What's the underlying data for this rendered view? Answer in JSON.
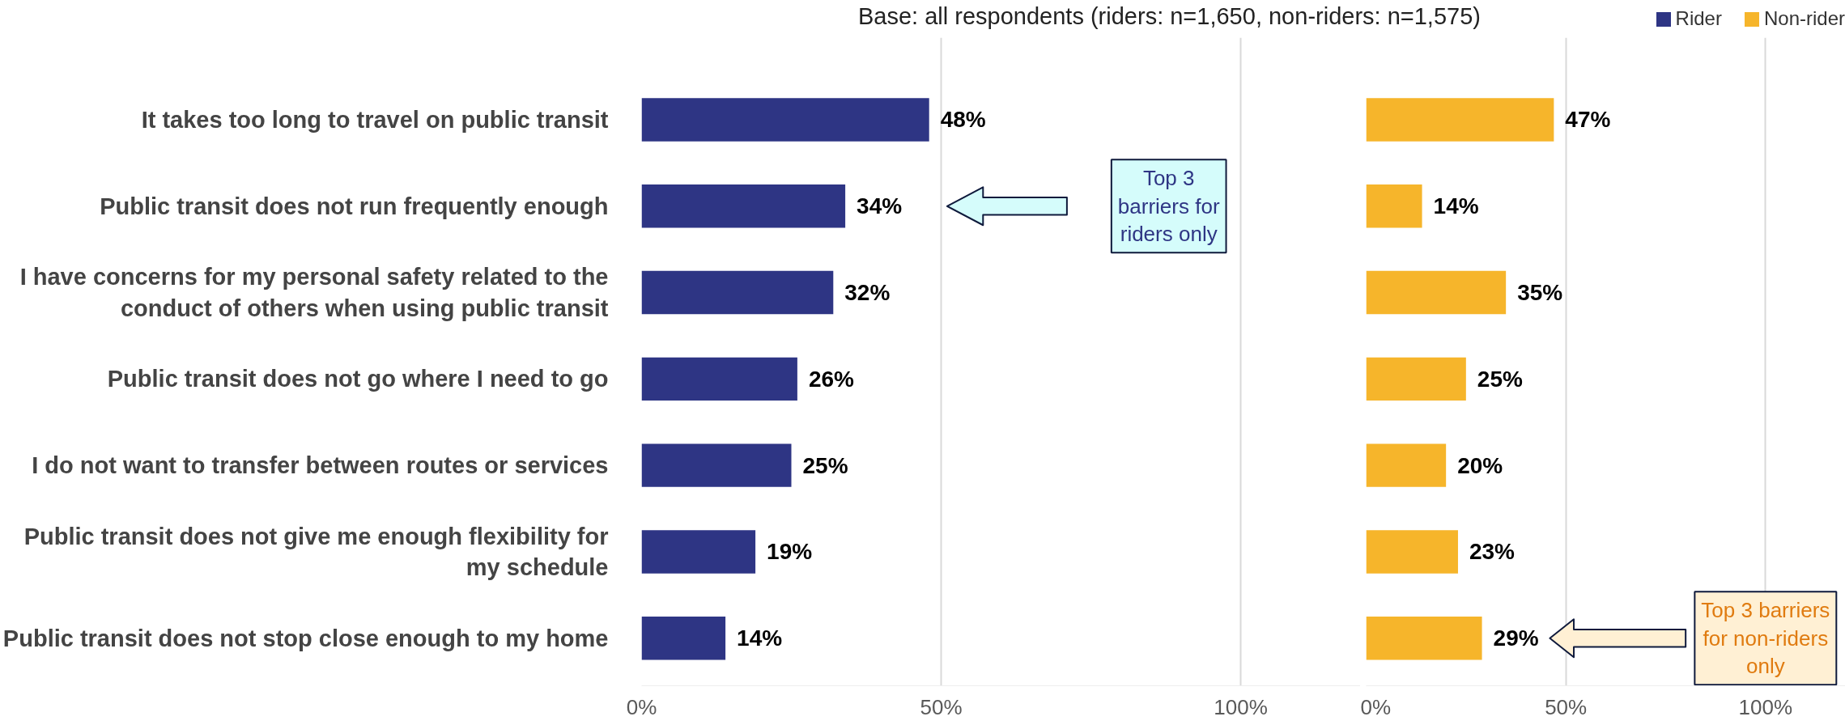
{
  "chart_data": [
    {
      "type": "bar",
      "orientation": "horizontal",
      "subtitle": "Base: all respondents (riders: n=1,650, non-riders: n=1,575)",
      "categories": [
        "It takes too long to travel on public transit",
        "Public transit does not run frequently enough",
        "I have concerns for my personal safety related to the conduct of others when using public transit",
        "Public transit does not go where I need to go",
        "I do not want to transfer between routes or services",
        "Public transit does not give me enough flexibility for my schedule",
        "Public transit does not stop close enough to my home"
      ],
      "series": [
        {
          "name": "Rider",
          "color": "#2e3584",
          "values": [
            48,
            34,
            32,
            26,
            25,
            19,
            14
          ],
          "value_labels": [
            "48%",
            "34%",
            "32%",
            "26%",
            "25%",
            "19%",
            "14%"
          ]
        }
      ],
      "xlim": [
        0,
        120
      ],
      "xticks": [
        {
          "value": 0,
          "label": "0%"
        },
        {
          "value": 50,
          "label": "50%"
        },
        {
          "value": 100,
          "label": "100%"
        }
      ],
      "grid": "x",
      "annotations": [
        "Top 3 barriers for riders only"
      ]
    },
    {
      "type": "bar",
      "orientation": "horizontal",
      "categories": [
        "It takes too long to travel on public transit",
        "Public transit does not run frequently enough",
        "I have concerns for my personal safety related to the conduct of others when using public transit",
        "Public transit does not go where I need to go",
        "I do not want to transfer between routes or services",
        "Public transit does not give me enough flexibility for my schedule",
        "Public transit does not stop close enough to my home"
      ],
      "series": [
        {
          "name": "Non-rider",
          "color": "#f6b52b",
          "values": [
            47,
            14,
            35,
            25,
            20,
            23,
            29
          ],
          "value_labels": [
            "47%",
            "14%",
            "35%",
            "25%",
            "20%",
            "23%",
            "29%"
          ]
        }
      ],
      "xlim": [
        0,
        120
      ],
      "xticks": [
        {
          "value": 0,
          "label": "0%"
        },
        {
          "value": 50,
          "label": "50%"
        },
        {
          "value": 100,
          "label": "100%"
        }
      ],
      "grid": "x",
      "tick_labels": "x",
      "legend": "top right",
      "annotations": [
        "Top 3 barriers for non-riders only"
      ]
    }
  ]
}
